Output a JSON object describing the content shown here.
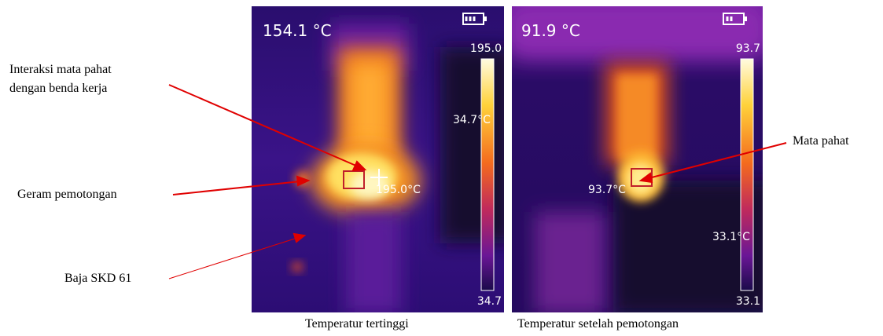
{
  "left_panel": {
    "temperature": "154.1 °C",
    "scale_max": "195.0",
    "scale_mid": "34.7°C",
    "spot": "195.0°C",
    "scale_min": "34.7",
    "caption": "Temperatur tertinggi"
  },
  "right_panel": {
    "temperature": "91.9 °C",
    "scale_max": "93.7",
    "spot": "93.7°C",
    "scale_mid": "33.1°C",
    "scale_min": "33.1",
    "caption": "Temperatur setelah pemotongan"
  },
  "annotations": [
    {
      "lines": [
        "Interaksi mata pahat",
        "dengan benda kerja"
      ]
    },
    {
      "label": "Geram pemotongan"
    },
    {
      "label": "Baja SKD 61"
    },
    {
      "label": "Mata pahat"
    }
  ]
}
